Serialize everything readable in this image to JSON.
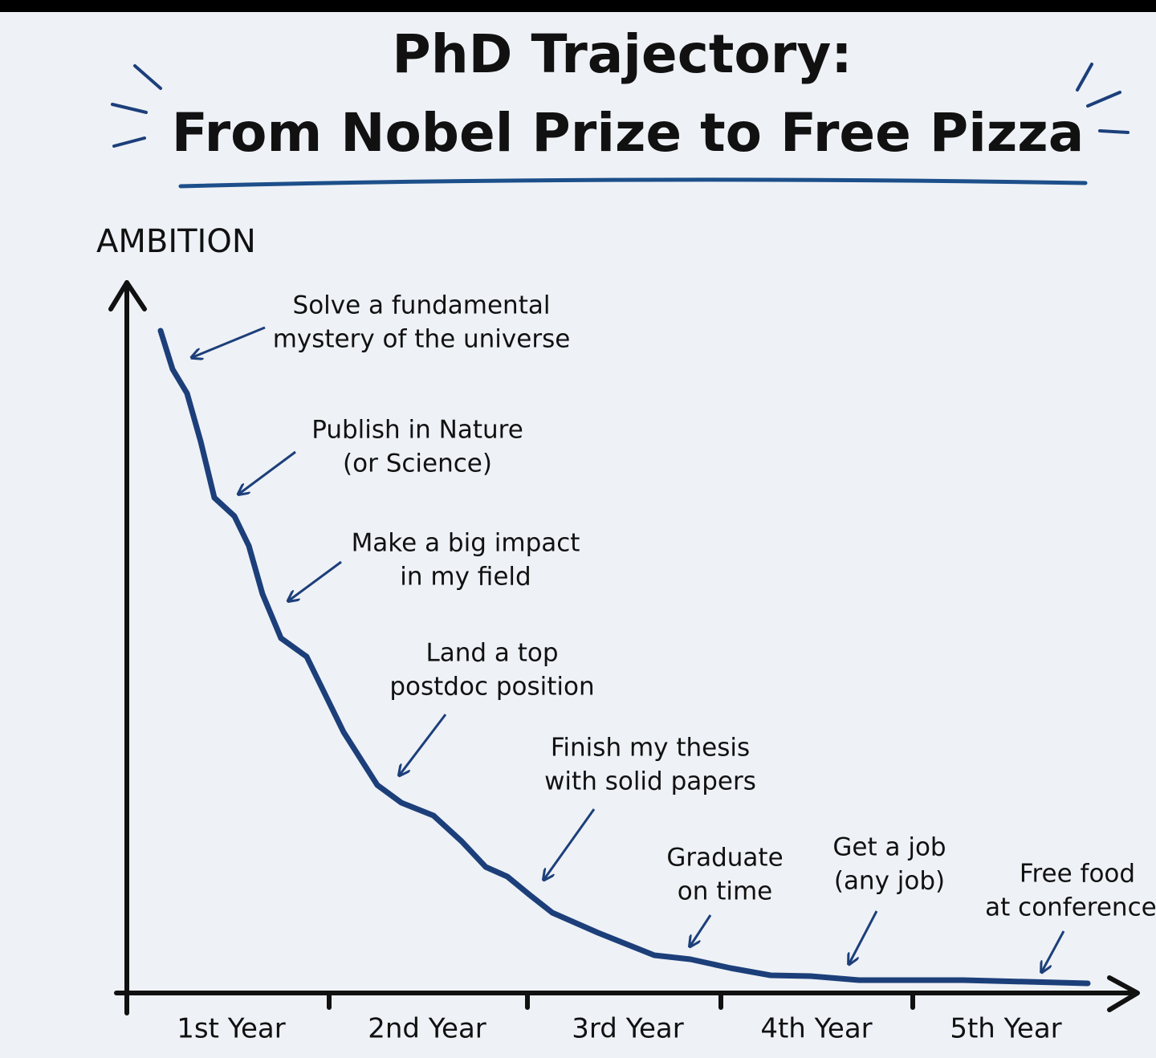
{
  "chart_data": {
    "type": "line",
    "title": "PhD Trajectory:",
    "subtitle": "From Nobel Prize to Free Pizza",
    "y_label": "AMBITION",
    "categories": [
      "1st Year",
      "2nd Year",
      "3rd Year",
      "4th Year",
      "5th Year"
    ],
    "annotations": [
      {
        "lines": [
          "Solve a fundamental",
          "mystery of the universe"
        ]
      },
      {
        "lines": [
          "Publish in Nature",
          "(or Science)"
        ]
      },
      {
        "lines": [
          "Make a big impact",
          "in my field"
        ]
      },
      {
        "lines": [
          "Land a top",
          "postdoc position"
        ]
      },
      {
        "lines": [
          "Finish my thesis",
          "with solid papers"
        ]
      },
      {
        "lines": [
          "Graduate",
          "on time"
        ]
      },
      {
        "lines": [
          "Get a job",
          "(any job)"
        ]
      },
      {
        "lines": [
          "Free food",
          "at conferences"
        ]
      }
    ]
  }
}
